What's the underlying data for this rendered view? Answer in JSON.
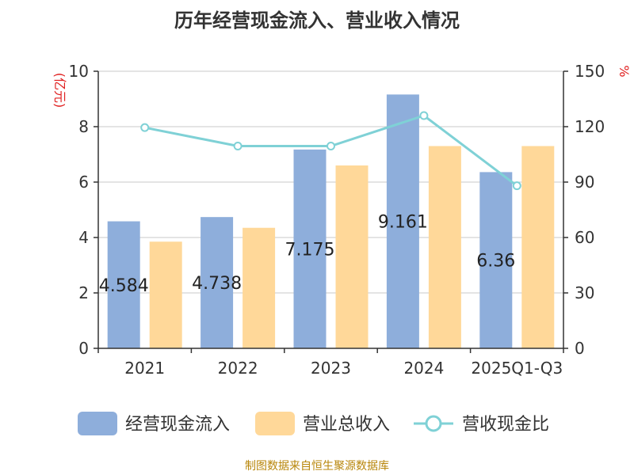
{
  "title": "历年经营现金流入、营业收入情况",
  "footer": "制图数据来自恒生聚源数据库",
  "colors": {
    "cashflow": "#8EAEDB",
    "revenue": "#FFD899",
    "ratio": "#7FD1D6",
    "axis": "#333333",
    "unit": "#E02020"
  },
  "chart_data": {
    "type": "bar",
    "categories": [
      "2021",
      "2022",
      "2023",
      "2024",
      "2025Q1-Q3"
    ],
    "series": [
      {
        "name": "经营现金流入",
        "type": "bar",
        "axis": "left",
        "values": [
          4.584,
          4.738,
          7.175,
          9.161,
          6.36
        ],
        "labels": [
          "4.584",
          "4.738",
          "7.175",
          "9.161",
          "6.36"
        ]
      },
      {
        "name": "营业总收入",
        "type": "bar",
        "axis": "left",
        "values": [
          3.85,
          4.35,
          6.6,
          7.3,
          7.3
        ]
      },
      {
        "name": "营收现金比",
        "type": "line",
        "axis": "right",
        "values": [
          119.5,
          109.5,
          109.5,
          126,
          88
        ]
      }
    ],
    "y_left": {
      "label": "(亿元)",
      "min": 0,
      "max": 10,
      "ticks": [
        "0",
        "2",
        "4",
        "6",
        "8",
        "10"
      ]
    },
    "y_right": {
      "label": "%",
      "min": 0,
      "max": 150,
      "ticks": [
        "0",
        "30",
        "60",
        "90",
        "120",
        "150"
      ]
    },
    "grid": true,
    "legend_position": "bottom"
  }
}
